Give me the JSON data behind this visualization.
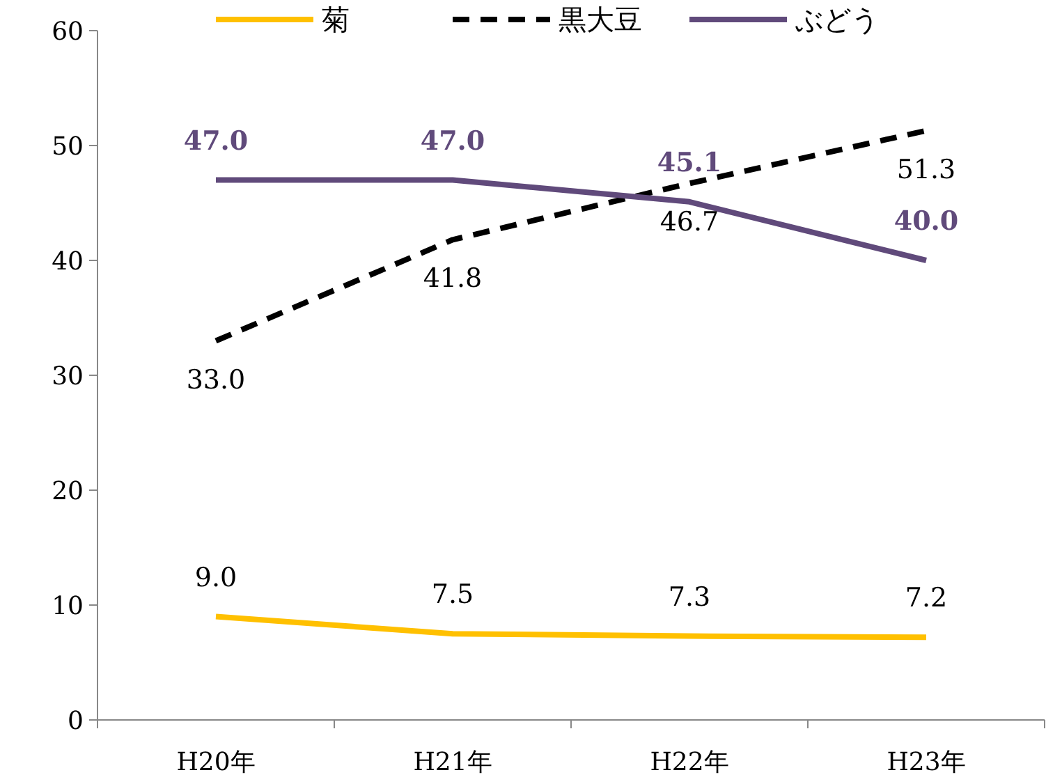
{
  "chart_data": {
    "type": "line",
    "categories": [
      "H20年",
      "H21年",
      "H22年",
      "H23年"
    ],
    "ylim": [
      0,
      60
    ],
    "yticks": [
      0,
      10,
      20,
      30,
      40,
      50,
      60
    ],
    "grid": false,
    "legend": "top",
    "marker": "none",
    "series": [
      {
        "name": "菊",
        "color": "#ffc000",
        "values": [
          9.0,
          7.5,
          7.3,
          7.2
        ],
        "value_labels": [
          "9.0",
          "7.5",
          "7.3",
          "7.2"
        ],
        "line_style": "solid"
      },
      {
        "name": "黒大豆",
        "color": "#000000",
        "values": [
          33.0,
          41.8,
          46.7,
          51.3
        ],
        "value_labels": [
          "33.0",
          "41.8",
          "46.7",
          "51.3"
        ],
        "line_style": "dashed"
      },
      {
        "name": "ぶどう",
        "color": "#604a7b",
        "values": [
          47.0,
          47.0,
          45.1,
          40.0
        ],
        "value_labels": [
          "47.0",
          "47.0",
          "45.1",
          "40.0"
        ],
        "line_style": "solid"
      }
    ]
  }
}
